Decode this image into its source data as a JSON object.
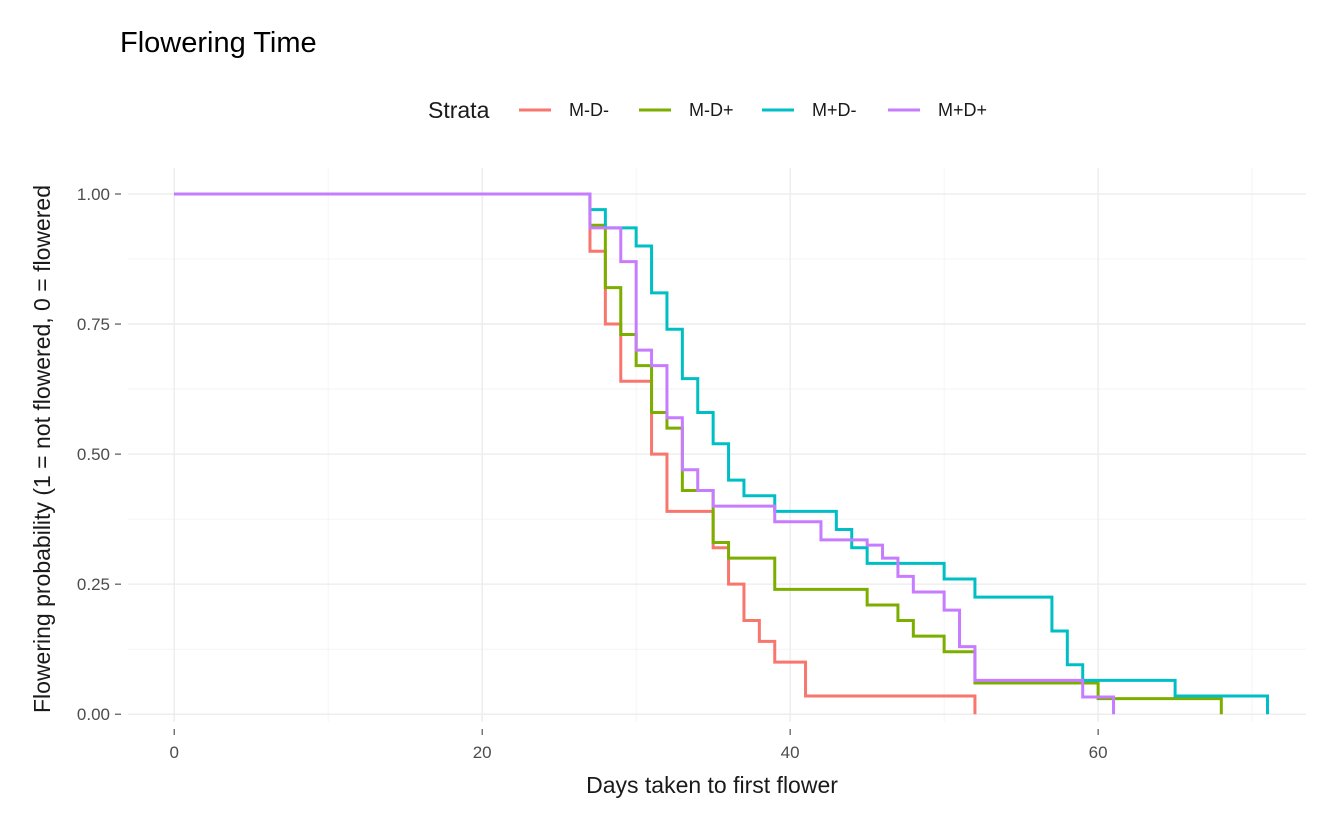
{
  "chart_data": {
    "type": "line",
    "step": true,
    "title": "Flowering Time",
    "xlabel": "Days taken to first flower",
    "ylabel": "Flowering probability (1 = not flowered, 0 = flowered",
    "xlim": [
      -3,
      73.5
    ],
    "ylim": [
      -0.015,
      1.05
    ],
    "xticks": [
      0,
      20,
      40,
      60
    ],
    "yticks": [
      0.0,
      0.25,
      0.5,
      0.75,
      1.0
    ],
    "xtick_labels": [
      "0",
      "20",
      "40",
      "60"
    ],
    "ytick_labels": [
      "0.00",
      "0.25",
      "0.50",
      "0.75",
      "1.00"
    ],
    "grid": true,
    "legend": {
      "title": "Strata",
      "position": "top"
    },
    "series": [
      {
        "name": "M-D-",
        "color": "#F8766D",
        "x": [
          0,
          27,
          28,
          29,
          31,
          32,
          35,
          36,
          37,
          38,
          39,
          41,
          52
        ],
        "y": [
          1.0,
          0.89,
          0.75,
          0.64,
          0.5,
          0.39,
          0.32,
          0.25,
          0.18,
          0.14,
          0.1,
          0.035,
          0.0
        ]
      },
      {
        "name": "M-D+",
        "color": "#7CAE00",
        "x": [
          0,
          27,
          28,
          29,
          30,
          31,
          32,
          33,
          35,
          36,
          39,
          45,
          47,
          48,
          50,
          52,
          60,
          68
        ],
        "y": [
          1.0,
          0.94,
          0.82,
          0.73,
          0.67,
          0.58,
          0.55,
          0.43,
          0.33,
          0.3,
          0.24,
          0.21,
          0.18,
          0.15,
          0.12,
          0.06,
          0.03,
          0.0
        ]
      },
      {
        "name": "M+D-",
        "color": "#00BFC4",
        "x": [
          0,
          27,
          28,
          30,
          31,
          32,
          33,
          34,
          35,
          36,
          37,
          39,
          43,
          44,
          45,
          46,
          50,
          52,
          57,
          58,
          59,
          65,
          71
        ],
        "y": [
          1.0,
          0.97,
          0.935,
          0.9,
          0.81,
          0.74,
          0.645,
          0.58,
          0.52,
          0.45,
          0.42,
          0.39,
          0.355,
          0.32,
          0.29,
          0.29,
          0.26,
          0.225,
          0.16,
          0.095,
          0.065,
          0.035,
          0.0
        ]
      },
      {
        "name": "M+D+",
        "color": "#C77CFF",
        "x": [
          0,
          27,
          29,
          30,
          31,
          32,
          33,
          34,
          35,
          39,
          42,
          45,
          46,
          47,
          48,
          50,
          51,
          52,
          59,
          61
        ],
        "y": [
          1.0,
          0.935,
          0.87,
          0.7,
          0.67,
          0.57,
          0.47,
          0.43,
          0.4,
          0.37,
          0.335,
          0.325,
          0.3,
          0.265,
          0.235,
          0.2,
          0.13,
          0.065,
          0.033,
          0.0
        ]
      }
    ]
  }
}
